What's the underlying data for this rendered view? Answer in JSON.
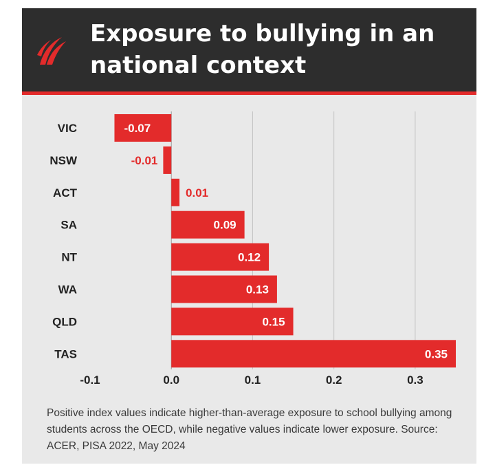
{
  "header": {
    "title_line1": "Exposure to bullying in an",
    "title_line2": "national context"
  },
  "logo": {
    "name": "sbs-logo-icon"
  },
  "colors": {
    "header_bg": "#2d2d2d",
    "accent": "#e32b2b",
    "bar": "#e32b2b",
    "card_bg": "#e9e9e9",
    "text_dark": "#222222"
  },
  "chart_data": {
    "type": "bar",
    "orientation": "horizontal",
    "title": "Exposure to bullying in an national context",
    "categories": [
      "VIC",
      "NSW",
      "ACT",
      "SA",
      "NT",
      "WA",
      "QLD",
      "TAS"
    ],
    "values": [
      -0.07,
      -0.01,
      0.01,
      0.09,
      0.12,
      0.13,
      0.15,
      0.35
    ],
    "value_labels": [
      "-0.07",
      "-0.01",
      "0.01",
      "0.09",
      "0.12",
      "0.13",
      "0.15",
      "0.35"
    ],
    "xlim": [
      -0.1,
      0.35
    ],
    "xticks": [
      -0.1,
      0.0,
      0.1,
      0.2,
      0.3
    ],
    "xtick_labels": [
      "-0.1",
      "0.0",
      "0.1",
      "0.2",
      "0.3"
    ],
    "xlabel": "",
    "ylabel": "",
    "grid": "vertical"
  },
  "footnote": "Positive index values indicate higher-than-average exposure to school bullying among students across the OECD, while negative values indicate lower exposure.  Source: ACER, PISA 2022, May 2024"
}
